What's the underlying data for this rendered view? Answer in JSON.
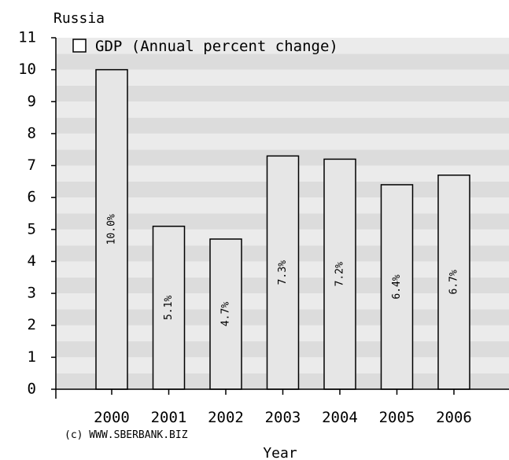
{
  "chart_data": {
    "type": "bar",
    "title": "Russia",
    "xlabel": "Year",
    "ylabel": "",
    "categories": [
      "2000",
      "2001",
      "2002",
      "2003",
      "2004",
      "2005",
      "2006"
    ],
    "series": [
      {
        "name": "GDP (Annual percent change)",
        "values": [
          10.0,
          5.1,
          4.7,
          7.3,
          7.2,
          6.4,
          6.7
        ]
      }
    ],
    "data_labels": [
      "10.0%",
      "5.1%",
      "4.7%",
      "7.3%",
      "7.2%",
      "6.4%",
      "6.7%"
    ],
    "ylim": [
      0,
      11
    ],
    "yticks": [
      "0",
      "1",
      "2",
      "3",
      "4",
      "5",
      "6",
      "7",
      "8",
      "9",
      "10",
      "11"
    ],
    "grid": "horizontal bands",
    "legend_position": "top-left",
    "colors": {
      "bar_fill": "#e6e6e6",
      "bar_stroke": "#000000",
      "band_dark": "#dcdcdc",
      "band_light": "#ebebeb",
      "axis": "#000000"
    }
  },
  "footer": {
    "copyright": "(c) WWW.SBERBANK.BIZ"
  }
}
